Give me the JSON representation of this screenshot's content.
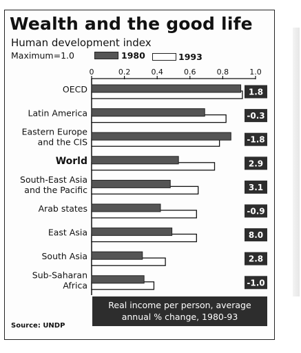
{
  "title": "Wealth and the good life",
  "subtitle": "Human development index",
  "max_label": "Maximum=1.0",
  "note": [
    "Real income per person, average",
    "annual % change, 1980-93"
  ],
  "source": "Source: UNDP",
  "colors": {
    "series_1980": "#555555",
    "series_1993": "#ffffff",
    "change_box": "#2d2d2d"
  },
  "chart_data": {
    "type": "bar",
    "orientation": "horizontal",
    "categories": [
      [
        "OECD"
      ],
      [
        "Latin America"
      ],
      [
        "Eastern Europe",
        "and the CIS"
      ],
      [
        "World"
      ],
      [
        "South-East Asia",
        "and the Pacific"
      ],
      [
        "Arab states"
      ],
      [
        "East Asia"
      ],
      [
        "South Asia"
      ],
      [
        "Sub-Saharan",
        "Africa"
      ]
    ],
    "bold_category": "World",
    "series": [
      {
        "name": "1980",
        "values": [
          0.91,
          0.69,
          0.85,
          0.53,
          0.48,
          0.42,
          0.49,
          0.31,
          0.32
        ]
      },
      {
        "name": "1993",
        "values": [
          0.92,
          0.82,
          0.78,
          0.75,
          0.65,
          0.64,
          0.64,
          0.45,
          0.38
        ]
      }
    ],
    "income_change_labels": [
      "1.8",
      "-0.3",
      "-1.8",
      "2.9",
      "3.1",
      "-0.9",
      "8.0",
      "2.8",
      "-1.0"
    ],
    "x_ticks": [
      "0",
      "0.2",
      "0.4",
      "0.6",
      "0.8",
      "1.0"
    ],
    "xlim": [
      0,
      1.0
    ],
    "legend_placement": "top"
  }
}
